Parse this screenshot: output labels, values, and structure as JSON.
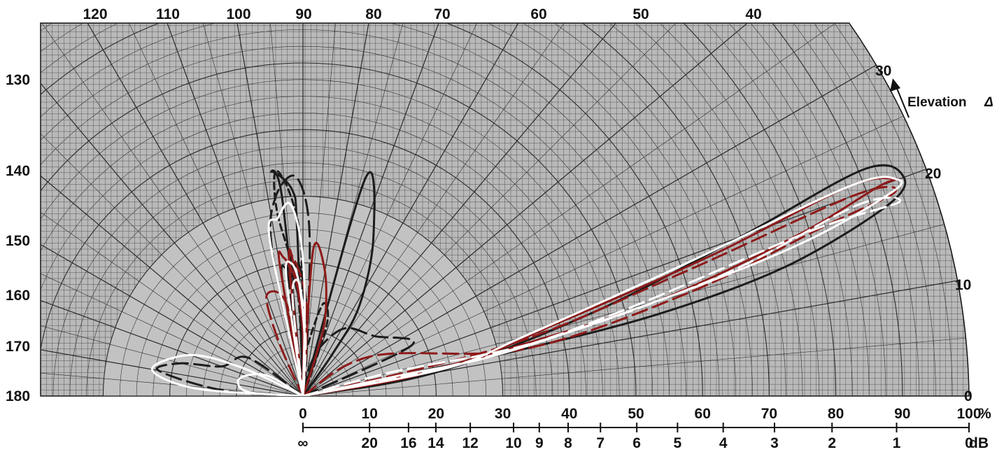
{
  "chart_data": {
    "type": "line",
    "subtype": "polar-radiation-pattern",
    "top_azimuth_ticks": [
      "120",
      "110",
      "100",
      "90",
      "80",
      "70",
      "60",
      "50",
      "40"
    ],
    "left_azimuth_ticks": [
      "130",
      "140",
      "150",
      "160",
      "170",
      "180"
    ],
    "right_elevation_ticks": [
      "30",
      "20",
      "10",
      "0"
    ],
    "elevation_label": "Elevation",
    "elevation_symbol": "Δ",
    "relative_scale": [
      "0",
      "10",
      "20",
      "30",
      "40",
      "50",
      "60",
      "70",
      "80",
      "90",
      "100"
    ],
    "relative_unit": "%",
    "db_scale": [
      "∞",
      "20",
      "16",
      "14",
      "12",
      "10",
      "9",
      "8",
      "7",
      "6",
      "5",
      "4",
      "3",
      "2",
      "1",
      "0"
    ],
    "db_unit": "dB",
    "rlim": [
      0,
      100
    ],
    "grid": true,
    "colors": {
      "paper": "#b9b9b9",
      "inner_disk": "#c2c2c2",
      "grid": "#2a2a2a",
      "black": "#1c1c1c",
      "red": "#8e1a1a",
      "white": "#ffffff"
    },
    "series": [
      {
        "color": "black",
        "style": "long-dash",
        "lobes": [
          [
            [
              18,
              97
            ],
            [
              19,
              96
            ],
            [
              20,
              92
            ],
            [
              14,
              88
            ],
            [
              6,
              85
            ]
          ],
          [
            [
              10,
              145
            ],
            [
              13,
              160
            ],
            [
              19,
              165
            ],
            [
              22,
              170
            ],
            [
              12,
              176
            ]
          ],
          [
            [
              22,
              102
            ],
            [
              30,
              98
            ],
            [
              33,
              92
            ],
            [
              26,
              88
            ],
            [
              10,
              86
            ]
          ],
          [
            [
              18,
              25
            ],
            [
              14,
              40
            ],
            [
              12,
              58
            ],
            [
              8,
              70
            ],
            [
              4,
              78
            ]
          ]
        ]
      },
      {
        "color": "black",
        "style": "short-dash",
        "lobes": [
          [
            [
              17,
              98
            ],
            [
              20,
              95
            ],
            [
              18,
              91
            ],
            [
              12,
              88
            ],
            [
              5,
              86
            ]
          ],
          [
            [
              16,
              93
            ],
            [
              28,
              98
            ],
            [
              34,
              97
            ],
            [
              31,
              94
            ],
            [
              24,
              91
            ],
            [
              12,
              90
            ]
          ],
          [
            [
              6,
              87
            ],
            [
              14,
              78
            ],
            [
              12,
              72
            ],
            [
              5,
              70
            ]
          ]
        ]
      },
      {
        "color": "black",
        "style": "solid",
        "lobes": [
          [
            [
              18,
              100
            ],
            [
              19,
              97
            ],
            [
              17,
              94
            ],
            [
              11,
              90
            ],
            [
              4,
              87
            ]
          ],
          [
            [
              18,
              12
            ],
            [
              34,
              12
            ],
            [
              55,
              13
            ],
            [
              75,
              15
            ],
            [
              92,
              18
            ],
            [
              96,
              20
            ],
            [
              91,
              22
            ],
            [
              70,
              20
            ],
            [
              45,
              16
            ],
            [
              20,
              10
            ]
          ],
          [
            [
              34,
              74
            ],
            [
              26,
              66
            ],
            [
              16,
              58
            ],
            [
              8,
              55
            ]
          ],
          [
            [
              30,
              96
            ],
            [
              34,
              98
            ],
            [
              31,
              93
            ],
            [
              25,
              92
            ]
          ]
        ]
      },
      {
        "color": "red",
        "style": "solid",
        "lobes": [
          [
            [
              20,
              100
            ],
            [
              21,
              98
            ],
            [
              18,
              94
            ],
            [
              12,
              91
            ],
            [
              5,
              88
            ]
          ],
          [
            [
              22,
              86
            ],
            [
              19,
              80
            ],
            [
              12,
              74
            ],
            [
              6,
              72
            ]
          ],
          [
            [
              16,
              10
            ],
            [
              32,
              13
            ],
            [
              55,
              15
            ],
            [
              78,
              18
            ],
            [
              92,
              20
            ],
            [
              95,
              20
            ],
            [
              88,
              21
            ],
            [
              65,
              19
            ],
            [
              40,
              16
            ],
            [
              24,
              12
            ]
          ],
          [
            [
              18,
              96
            ],
            [
              22,
              95
            ],
            [
              15,
              92
            ],
            [
              10,
              90
            ]
          ]
        ]
      },
      {
        "color": "red",
        "style": "long-dash",
        "lobes": [
          [
            [
              20,
              96
            ],
            [
              19,
              92
            ],
            [
              14,
              88
            ],
            [
              7,
              86
            ]
          ],
          [
            [
              12,
              30
            ],
            [
              34,
              12
            ],
            [
              60,
              15
            ],
            [
              82,
              18
            ],
            [
              94,
              19
            ],
            [
              88,
              20
            ],
            [
              60,
              18
            ],
            [
              32,
              14
            ]
          ],
          [
            [
              14,
              100
            ],
            [
              16,
              110
            ],
            [
              9,
              114
            ]
          ]
        ]
      },
      {
        "color": "white",
        "style": "solid",
        "lobes": [
          [
            [
              18,
              98
            ],
            [
              20,
              95
            ],
            [
              17,
              92
            ],
            [
              10,
              89
            ],
            [
              4,
              87
            ]
          ],
          [
            [
              24,
              102
            ],
            [
              27,
              98
            ],
            [
              29,
              94
            ],
            [
              24,
              91
            ],
            [
              15,
              89
            ]
          ],
          [
            [
              15,
              12
            ],
            [
              30,
              12
            ],
            [
              55,
              15
            ],
            [
              78,
              17
            ],
            [
              93,
              19
            ],
            [
              95,
              20
            ],
            [
              88,
              21
            ],
            [
              60,
              19
            ],
            [
              34,
              15
            ],
            [
              22,
              11
            ]
          ],
          [
            [
              10,
              155
            ],
            [
              18,
              160
            ],
            [
              23,
              170
            ],
            [
              16,
              176
            ]
          ],
          [
            [
              6,
              150
            ],
            [
              9,
              160
            ],
            [
              10,
              168
            ],
            [
              8,
              176
            ]
          ]
        ]
      },
      {
        "color": "white",
        "style": "long-dash",
        "lobes": [
          [
            [
              15,
              96
            ],
            [
              17,
              92
            ],
            [
              10,
              88
            ],
            [
              4,
              86
            ]
          ],
          [
            [
              14,
              15
            ],
            [
              36,
              13
            ],
            [
              65,
              16
            ],
            [
              88,
              19
            ],
            [
              94,
              18
            ],
            [
              80,
              18
            ],
            [
              50,
              15
            ],
            [
              28,
              12
            ]
          ]
        ]
      }
    ]
  }
}
